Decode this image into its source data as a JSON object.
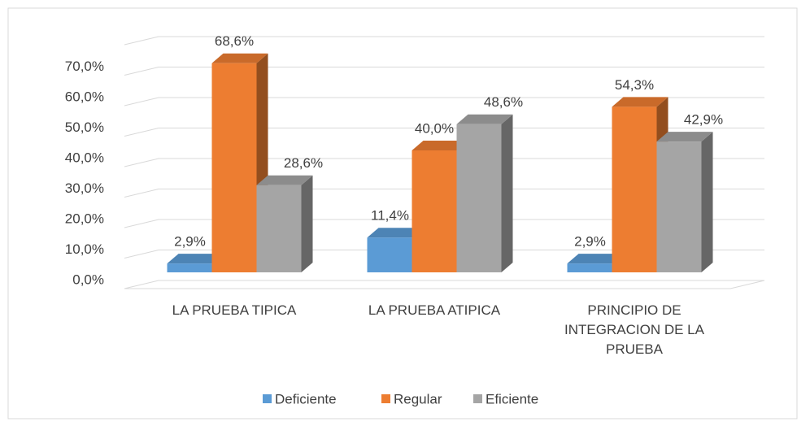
{
  "chart_data": {
    "type": "bar3d",
    "categories": [
      "LA PRUEBA TIPICA",
      "LA PRUEBA ATIPICA",
      "PRINCIPIO DE INTEGRACION DE LA PRUEBA"
    ],
    "series": [
      {
        "name": "Deficiente",
        "color": "#5b9bd5",
        "values": [
          2.9,
          11.4,
          2.9
        ],
        "value_labels": [
          "2,9%",
          "11,4%",
          "2,9%"
        ]
      },
      {
        "name": "Regular",
        "color": "#ed7d31",
        "values": [
          68.6,
          40.0,
          54.3
        ],
        "value_labels": [
          "68,6%",
          "40,0%",
          "54,3%"
        ]
      },
      {
        "name": "Eficiente",
        "color": "#a5a5a5",
        "values": [
          28.6,
          48.6,
          42.9
        ],
        "value_labels": [
          "28,6%",
          "48,6%",
          "42,9%"
        ]
      }
    ],
    "ylim": [
      0,
      80
    ],
    "yticks": [
      {
        "value": 0,
        "label": "0,0%"
      },
      {
        "value": 10,
        "label": "10,0%"
      },
      {
        "value": 20,
        "label": "20,0%"
      },
      {
        "value": 30,
        "label": "30,0%"
      },
      {
        "value": 40,
        "label": "40,0%"
      },
      {
        "value": 50,
        "label": "50,0%"
      },
      {
        "value": 60,
        "label": "60,0%"
      },
      {
        "value": 70,
        "label": "70,0%"
      }
    ],
    "grid": true,
    "legend": "bottom"
  }
}
